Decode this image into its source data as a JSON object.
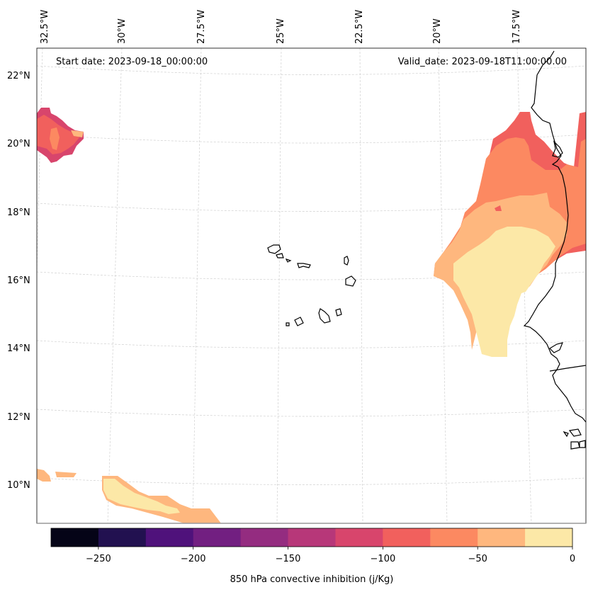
{
  "map": {
    "start_date": "Start date: 2023-09-18_00:00:00",
    "valid_date": "Valid_date: 2023-09-18T11:00:00.00",
    "lon_labels": [
      "32.5°W",
      "30°W",
      "27.5°W",
      "25°W",
      "22.5°W",
      "20°W",
      "17.5°W"
    ],
    "lat_labels": [
      "22°N",
      "20°N",
      "18°N",
      "16°N",
      "14°N",
      "12°N",
      "10°N"
    ]
  },
  "colorbar": {
    "label": "850 hPa convective inhibition (j/Kg)",
    "ticks": [
      "−250",
      "−200",
      "−150",
      "−100",
      "−50",
      "0"
    ],
    "colors": [
      "#050417",
      "#221150",
      "#4f127b",
      "#721f81",
      "#942c80",
      "#b73779",
      "#d8456c",
      "#f1605d",
      "#fc8961",
      "#feb77e",
      "#fce8a7"
    ]
  },
  "colors": {
    "level_-125": "#d8456c",
    "level_-100": "#f1605d",
    "level_-75": "#fc8961",
    "level_-50": "#feb77e",
    "level_-25": "#fce8a7",
    "coast": "#000000",
    "grid": "#d0d0d0"
  }
}
